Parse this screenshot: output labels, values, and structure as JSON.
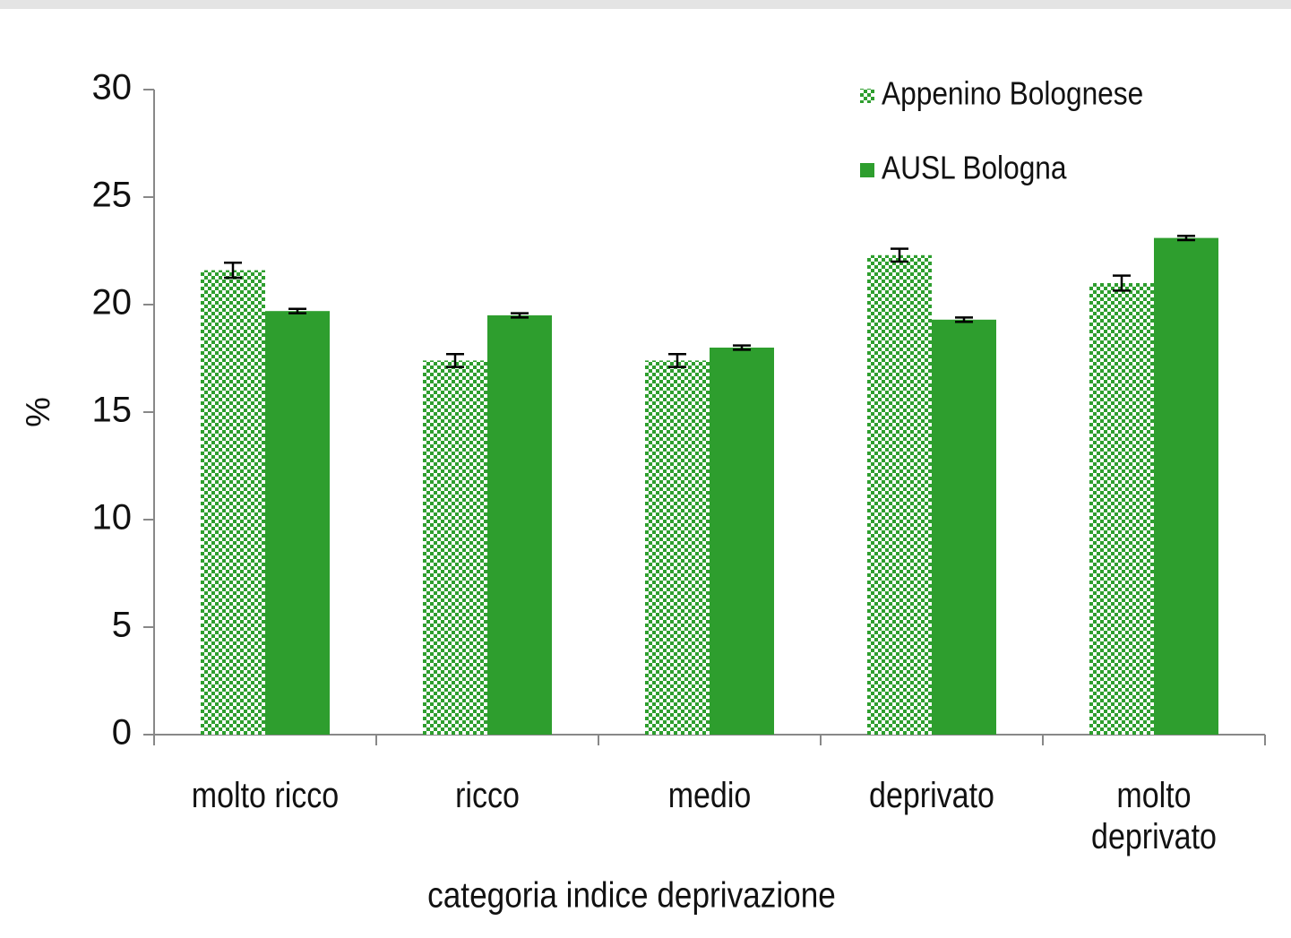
{
  "chart_data": {
    "type": "bar",
    "x_label": "categoria indice deprivazione",
    "y_label": "%",
    "categories": [
      "molto ricco",
      "ricco",
      "medio",
      "deprivato",
      "molto deprivato"
    ],
    "series": [
      {
        "name": "Appenino Bolognese",
        "color": "#2e9e2e",
        "pattern": "dotted",
        "values": [
          21.6,
          17.4,
          17.4,
          22.3,
          21.0
        ],
        "errors": [
          0.35,
          0.3,
          0.3,
          0.3,
          0.35
        ]
      },
      {
        "name": "AUSL Bologna",
        "color": "#2e9e2e",
        "pattern": "solid",
        "values": [
          19.7,
          19.5,
          18.0,
          19.3,
          23.1
        ],
        "errors": [
          0.1,
          0.1,
          0.1,
          0.1,
          0.1
        ]
      }
    ],
    "ylim": [
      0,
      30
    ],
    "yticks": [
      0,
      5,
      10,
      15,
      20,
      25,
      30
    ],
    "grid": false,
    "legend": "top-right"
  }
}
